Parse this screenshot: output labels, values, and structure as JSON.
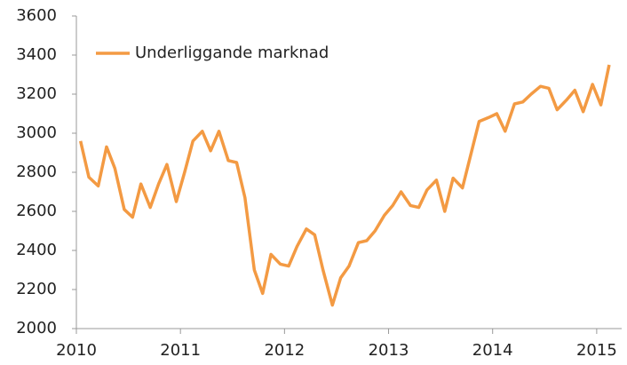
{
  "chart_data": {
    "type": "line",
    "x": [
      2010.04,
      2010.12,
      2010.21,
      2010.29,
      2010.37,
      2010.46,
      2010.54,
      2010.62,
      2010.71,
      2010.79,
      2010.87,
      2010.96,
      2011.04,
      2011.12,
      2011.21,
      2011.29,
      2011.37,
      2011.46,
      2011.54,
      2011.62,
      2011.71,
      2011.79,
      2011.87,
      2011.96,
      2012.04,
      2012.12,
      2012.21,
      2012.29,
      2012.37,
      2012.46,
      2012.54,
      2012.62,
      2012.71,
      2012.79,
      2012.87,
      2012.96,
      2013.04,
      2013.12,
      2013.21,
      2013.29,
      2013.37,
      2013.46,
      2013.54,
      2013.62,
      2013.71,
      2013.79,
      2013.87,
      2013.96,
      2014.04,
      2014.12,
      2014.21,
      2014.29,
      2014.37,
      2014.46,
      2014.54,
      2014.62,
      2014.71,
      2014.79,
      2014.87,
      2014.96,
      2015.04,
      2015.12
    ],
    "series": [
      {
        "name": "Underliggande marknad",
        "color": "#f39a43",
        "values": [
          2960,
          2775,
          2730,
          2930,
          2820,
          2610,
          2570,
          2740,
          2620,
          2740,
          2840,
          2650,
          2800,
          2960,
          3010,
          2910,
          3010,
          2860,
          2850,
          2670,
          2300,
          2180,
          2380,
          2330,
          2320,
          2420,
          2510,
          2480,
          2300,
          2120,
          2260,
          2320,
          2440,
          2450,
          2500,
          2580,
          2630,
          2700,
          2630,
          2620,
          2710,
          2760,
          2600,
          2770,
          2720,
          2890,
          3060,
          3080,
          3100,
          3010,
          3150,
          3160,
          3200,
          3240,
          3230,
          3120,
          3170,
          3220,
          3110,
          3250,
          3145,
          3350
        ]
      }
    ],
    "xlim": [
      2010,
      2015.24
    ],
    "xticks": [
      2010,
      2011,
      2012,
      2013,
      2014,
      2015
    ],
    "ylim": [
      2000,
      3600
    ],
    "yticks": [
      2000,
      2200,
      2400,
      2600,
      2800,
      3000,
      3200,
      3400,
      3600
    ],
    "grid": false,
    "legend": "upper left"
  }
}
